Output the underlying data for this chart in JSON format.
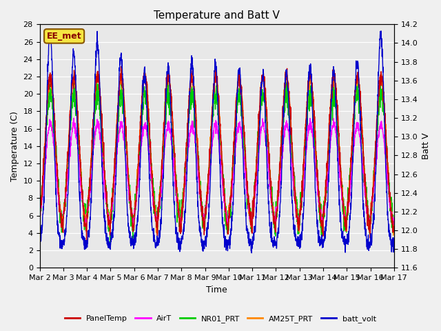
{
  "title": "Temperature and Batt V",
  "xlabel": "Time",
  "ylabel_left": "Temperature (C)",
  "ylabel_right": "Batt V",
  "ylim_left": [
    0,
    28
  ],
  "ylim_right": [
    11.6,
    14.2
  ],
  "yticks_left": [
    0,
    2,
    4,
    6,
    8,
    10,
    12,
    14,
    16,
    18,
    20,
    22,
    24,
    26,
    28
  ],
  "yticks_right": [
    11.6,
    11.8,
    12.0,
    12.2,
    12.4,
    12.6,
    12.8,
    13.0,
    13.2,
    13.4,
    13.6,
    13.8,
    14.0,
    14.2
  ],
  "xtick_labels": [
    "Mar 2",
    "Mar 3",
    "Mar 4",
    "Mar 5",
    "Mar 6",
    "Mar 7",
    "Mar 8",
    "Mar 9",
    "Mar 10",
    "Mar 11",
    "Mar 12",
    "Mar 13",
    "Mar 14",
    "Mar 15",
    "Mar 16",
    "Mar 17"
  ],
  "line_colors": {
    "PanelTemp": "#cc0000",
    "AirT": "#ff00ff",
    "NR01_PRT": "#00cc00",
    "AM25T_PRT": "#ff8800",
    "batt_volt": "#0000cc"
  },
  "line_widths": {
    "PanelTemp": 1.0,
    "AirT": 1.0,
    "NR01_PRT": 1.0,
    "AM25T_PRT": 1.0,
    "batt_volt": 1.0
  },
  "annotation_text": "EE_met",
  "annotation_bg": "#f5e642",
  "annotation_border": "#885500",
  "plot_bg": "#e8e8e8",
  "fig_bg": "#f0f0f0",
  "days": 15,
  "pts_per_day": 144
}
